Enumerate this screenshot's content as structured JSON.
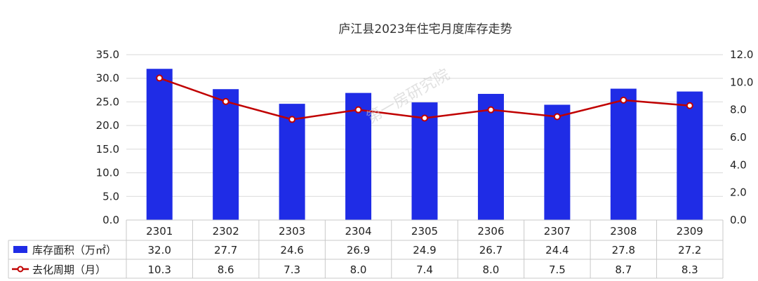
{
  "chart_data": {
    "type": "bar",
    "title": "庐江县2023年住宅月度库存走势",
    "categories": [
      "2301",
      "2302",
      "2303",
      "2304",
      "2305",
      "2306",
      "2307",
      "2308",
      "2309"
    ],
    "series": [
      {
        "name": "库存面积（万㎡）",
        "type": "bar",
        "axis": "left",
        "color": "#1f2ce6",
        "values": [
          32.0,
          27.7,
          24.6,
          26.9,
          24.9,
          26.7,
          24.4,
          27.8,
          27.2
        ]
      },
      {
        "name": "去化周期（月）",
        "type": "line",
        "axis": "right",
        "color": "#c00000",
        "values": [
          10.3,
          8.6,
          7.3,
          8.0,
          7.4,
          8.0,
          7.5,
          8.7,
          8.3
        ]
      }
    ],
    "y_left": {
      "min": 0,
      "max": 35,
      "step": 5,
      "tick_labels": [
        "0.0",
        "5.0",
        "10.0",
        "15.0",
        "20.0",
        "25.0",
        "30.0",
        "35.0"
      ]
    },
    "y_right": {
      "min": 0,
      "max": 12,
      "step": 2,
      "tick_labels": [
        "0.0",
        "2.0",
        "4.0",
        "6.0",
        "8.0",
        "10.0",
        "12.0"
      ]
    },
    "grid": true,
    "legend": "data-table-below",
    "data_table": {
      "rows": [
        {
          "label": "库存面积（万㎡）",
          "cells": [
            "32.0",
            "27.7",
            "24.6",
            "26.9",
            "24.9",
            "26.7",
            "24.4",
            "27.8",
            "27.2"
          ]
        },
        {
          "label": "去化周期（月）",
          "cells": [
            "10.3",
            "8.6",
            "7.3",
            "8.0",
            "7.4",
            "8.0",
            "7.5",
            "8.7",
            "8.3"
          ]
        }
      ]
    },
    "watermark": "第一房研究院"
  }
}
